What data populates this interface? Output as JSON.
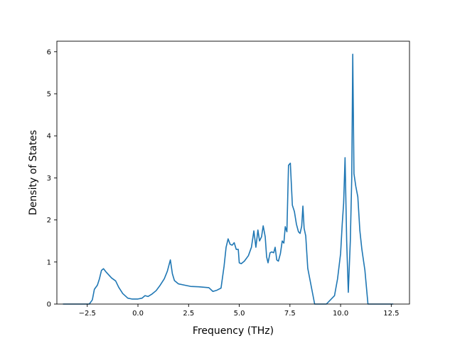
{
  "chart_data": {
    "type": "line",
    "xlabel": "Frequency (THz)",
    "ylabel": "Density of States",
    "xlim": [
      -4.0,
      13.4
    ],
    "ylim": [
      0,
      6.25
    ],
    "xticks": [
      -2.5,
      0.0,
      2.5,
      5.0,
      7.5,
      10.0,
      12.5
    ],
    "xtick_labels": [
      "−2.5",
      "0.0",
      "2.5",
      "5.0",
      "7.5",
      "10.0",
      "12.5"
    ],
    "yticks": [
      0,
      1,
      2,
      3,
      4,
      5,
      6
    ],
    "ytick_labels": [
      "0",
      "1",
      "2",
      "3",
      "4",
      "5",
      "6"
    ],
    "grid": false,
    "series": [
      {
        "color": "#1f77b4",
        "points": [
          [
            -3.7,
            0.0
          ],
          [
            -2.4,
            0.0
          ],
          [
            -2.25,
            0.1
          ],
          [
            -2.15,
            0.35
          ],
          [
            -2.0,
            0.45
          ],
          [
            -1.9,
            0.6
          ],
          [
            -1.8,
            0.8
          ],
          [
            -1.7,
            0.84
          ],
          [
            -1.55,
            0.75
          ],
          [
            -1.3,
            0.62
          ],
          [
            -1.1,
            0.55
          ],
          [
            -0.95,
            0.4
          ],
          [
            -0.75,
            0.25
          ],
          [
            -0.5,
            0.14
          ],
          [
            -0.3,
            0.12
          ],
          [
            0.0,
            0.12
          ],
          [
            0.2,
            0.14
          ],
          [
            0.35,
            0.2
          ],
          [
            0.5,
            0.18
          ],
          [
            0.7,
            0.24
          ],
          [
            0.9,
            0.32
          ],
          [
            1.1,
            0.45
          ],
          [
            1.3,
            0.6
          ],
          [
            1.45,
            0.78
          ],
          [
            1.6,
            1.05
          ],
          [
            1.7,
            0.72
          ],
          [
            1.8,
            0.56
          ],
          [
            2.0,
            0.48
          ],
          [
            2.3,
            0.45
          ],
          [
            2.6,
            0.42
          ],
          [
            3.0,
            0.41
          ],
          [
            3.5,
            0.39
          ],
          [
            3.7,
            0.3
          ],
          [
            3.9,
            0.33
          ],
          [
            4.1,
            0.38
          ],
          [
            4.25,
            0.9
          ],
          [
            4.35,
            1.35
          ],
          [
            4.45,
            1.55
          ],
          [
            4.55,
            1.42
          ],
          [
            4.65,
            1.4
          ],
          [
            4.75,
            1.46
          ],
          [
            4.85,
            1.3
          ],
          [
            4.95,
            1.3
          ],
          [
            5.0,
            0.98
          ],
          [
            5.1,
            0.96
          ],
          [
            5.25,
            1.02
          ],
          [
            5.45,
            1.15
          ],
          [
            5.6,
            1.35
          ],
          [
            5.72,
            1.74
          ],
          [
            5.82,
            1.35
          ],
          [
            5.92,
            1.76
          ],
          [
            6.0,
            1.5
          ],
          [
            6.1,
            1.6
          ],
          [
            6.18,
            1.86
          ],
          [
            6.28,
            1.6
          ],
          [
            6.35,
            1.12
          ],
          [
            6.42,
            0.98
          ],
          [
            6.52,
            1.22
          ],
          [
            6.6,
            1.24
          ],
          [
            6.7,
            1.22
          ],
          [
            6.77,
            1.35
          ],
          [
            6.85,
            1.05
          ],
          [
            6.93,
            1.02
          ],
          [
            7.03,
            1.2
          ],
          [
            7.12,
            1.5
          ],
          [
            7.2,
            1.45
          ],
          [
            7.27,
            1.84
          ],
          [
            7.35,
            1.72
          ],
          [
            7.43,
            3.3
          ],
          [
            7.52,
            3.35
          ],
          [
            7.62,
            2.35
          ],
          [
            7.72,
            2.2
          ],
          [
            7.82,
            1.9
          ],
          [
            7.92,
            1.72
          ],
          [
            8.0,
            1.68
          ],
          [
            8.08,
            1.85
          ],
          [
            8.14,
            2.33
          ],
          [
            8.2,
            1.8
          ],
          [
            8.28,
            1.62
          ],
          [
            8.38,
            0.85
          ],
          [
            8.48,
            0.6
          ],
          [
            8.6,
            0.3
          ],
          [
            8.72,
            0.0
          ],
          [
            9.3,
            0.0
          ],
          [
            9.7,
            0.2
          ],
          [
            9.85,
            0.6
          ],
          [
            10.0,
            1.2
          ],
          [
            10.08,
            1.9
          ],
          [
            10.15,
            2.4
          ],
          [
            10.22,
            3.48
          ],
          [
            10.3,
            1.5
          ],
          [
            10.38,
            0.28
          ],
          [
            10.48,
            1.5
          ],
          [
            10.55,
            3.0
          ],
          [
            10.6,
            5.94
          ],
          [
            10.66,
            3.1
          ],
          [
            10.75,
            2.8
          ],
          [
            10.85,
            2.55
          ],
          [
            10.95,
            1.75
          ],
          [
            11.05,
            1.3
          ],
          [
            11.2,
            0.8
          ],
          [
            11.35,
            0.0
          ],
          [
            12.6,
            0.0
          ]
        ]
      }
    ]
  }
}
